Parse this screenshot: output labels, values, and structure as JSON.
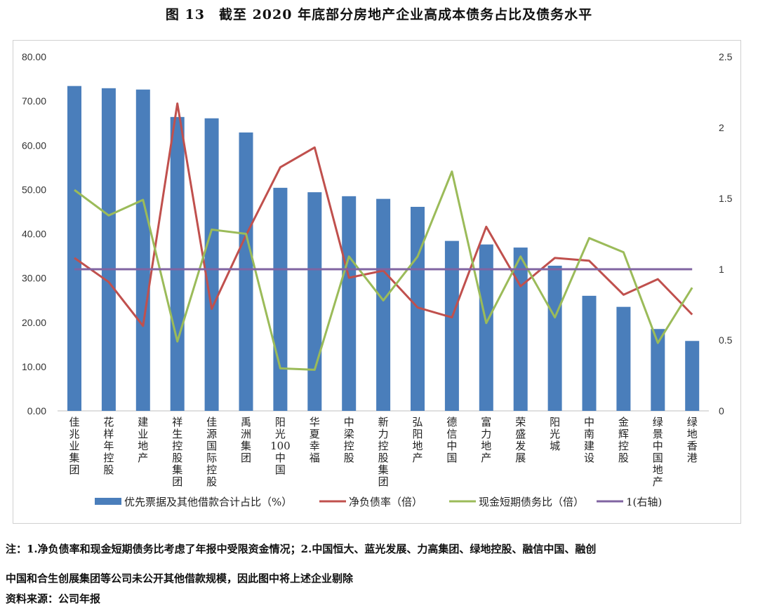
{
  "title": "图 13　截至 2020 年底部分房地产企业高成本债务占比及债务水平",
  "chart_data": {
    "type": "bar+line",
    "categories": [
      "佳兆业集团",
      "花样年控股",
      "建业地产",
      "祥生控股集团",
      "佳源国际控股",
      "禹洲集团",
      "阳光100中国",
      "华夏幸福",
      "中梁控股",
      "新力控股集团",
      "弘阳地产",
      "德信中国",
      "富力地产",
      "荣盛发展",
      "阳光城",
      "中南建设",
      "金辉控股",
      "绿景中国地产",
      "绿地香港"
    ],
    "left_axis": {
      "ylim": [
        0,
        80
      ],
      "ticks": [
        "0.00",
        "10.00",
        "20.00",
        "30.00",
        "40.00",
        "50.00",
        "60.00",
        "70.00",
        "80.00"
      ]
    },
    "right_axis": {
      "ylim": [
        0,
        2.5
      ],
      "ticks": [
        "0",
        "0.5",
        "1",
        "1.5",
        "2",
        "2.5"
      ]
    },
    "grid": false,
    "legend_position": "bottom",
    "series": [
      {
        "name": "优先票据及其他借款合计占比（%）",
        "type": "bar",
        "axis": "left",
        "color": "#4a7ebb",
        "values": [
          73.4,
          72.9,
          72.6,
          66.4,
          66.1,
          62.9,
          50.4,
          49.4,
          48.5,
          47.9,
          46.1,
          38.4,
          37.6,
          36.9,
          32.8,
          26.0,
          23.5,
          18.5,
          15.8
        ]
      },
      {
        "name": "净负债率（倍）",
        "type": "line",
        "axis": "right",
        "color": "#c0504d",
        "values": [
          1.08,
          0.91,
          0.6,
          2.17,
          0.72,
          1.24,
          1.72,
          1.86,
          0.94,
          0.99,
          0.73,
          0.66,
          1.3,
          0.88,
          1.08,
          1.06,
          0.82,
          0.93,
          0.68
        ]
      },
      {
        "name": "现金短期债务比（倍）",
        "type": "line",
        "axis": "right",
        "color": "#9bbb59",
        "values": [
          1.56,
          1.38,
          1.49,
          0.49,
          1.28,
          1.25,
          0.3,
          0.29,
          1.09,
          0.78,
          1.09,
          1.69,
          0.62,
          1.09,
          0.66,
          1.22,
          1.12,
          0.48,
          0.87
        ]
      },
      {
        "name": "1(右轴)",
        "type": "line",
        "axis": "right",
        "color": "#8064a2",
        "values": [
          1,
          1,
          1,
          1,
          1,
          1,
          1,
          1,
          1,
          1,
          1,
          1,
          1,
          1,
          1,
          1,
          1,
          1,
          1
        ]
      }
    ]
  },
  "notes": {
    "line1": "注：1.净负债率和现金短期债务比考虑了年报中受限资金情况；2.中国恒大、蓝光发展、力高集团、绿地控股、融信中国、融创",
    "line2": "中国和合生创展集团等公司未公开其他借款规模，因此图中将上述企业剔除",
    "source": "资料来源：公司年报"
  }
}
